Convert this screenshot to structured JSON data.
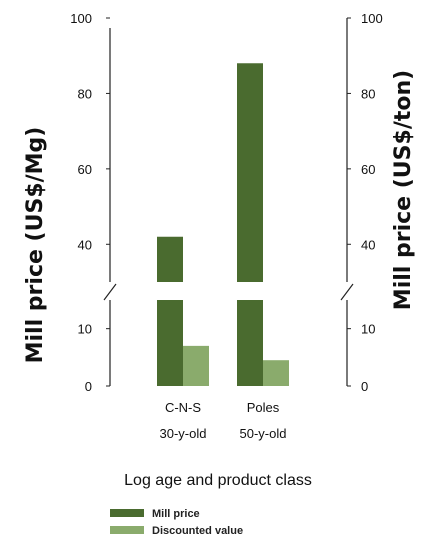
{
  "chart_data": {
    "type": "bar",
    "title": "",
    "categories": [
      "C-N-S",
      "Poles"
    ],
    "category_sublabels": [
      "30-y-old",
      "50-y-old"
    ],
    "xlabel": "Log age and product class",
    "ylabel_left": "Mill price (US$/Mg)",
    "ylabel_right": "Mill price (US$/ton)",
    "left_axis": {
      "scale": "broken",
      "lower_segment": {
        "range": [
          0,
          15
        ],
        "ticks": [
          "0",
          "10"
        ]
      },
      "upper_segment": {
        "range": [
          30,
          100
        ],
        "ticks": [
          "40",
          "60",
          "80",
          "100"
        ]
      }
    },
    "right_axis": {
      "scale": "broken",
      "lower_segment": {
        "range": [
          0,
          15
        ],
        "ticks": [
          "0",
          "10"
        ]
      },
      "upper_segment": {
        "range": [
          30,
          100
        ],
        "ticks": [
          "40",
          "60",
          "80",
          "100"
        ]
      }
    },
    "series": [
      {
        "name": "Mill price",
        "values": [
          42,
          88
        ],
        "color": "#4a6b2f"
      },
      {
        "name": "Discounted value",
        "values": [
          7,
          4.5
        ],
        "color": "#8aab6c"
      }
    ],
    "legend_position": "bottom",
    "grid": false
  }
}
